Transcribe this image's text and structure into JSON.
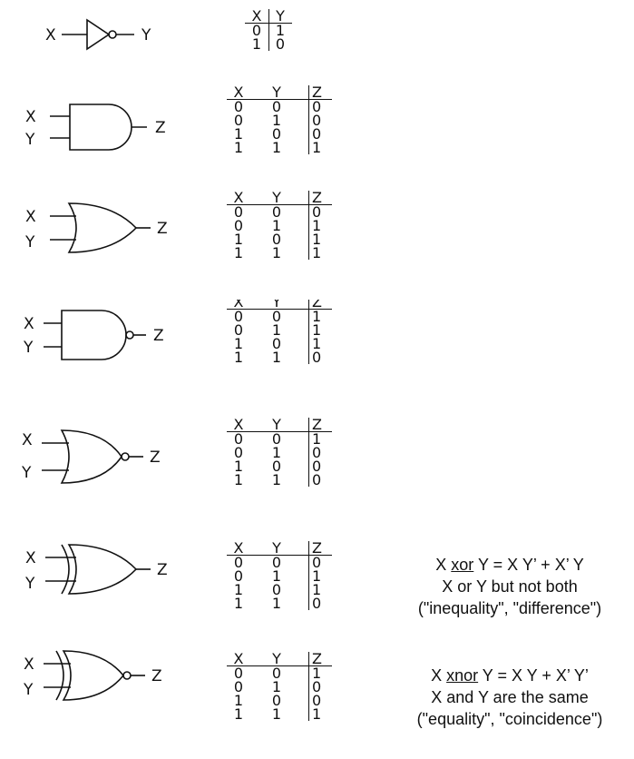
{
  "tables": [
    {
      "id": "not",
      "headers": [
        "X",
        "Y"
      ],
      "rows": [
        [
          "0",
          "1"
        ],
        [
          "1",
          "0"
        ]
      ]
    },
    {
      "id": "and",
      "headers": [
        "X",
        "Y",
        "Z"
      ],
      "rows": [
        [
          "0",
          "0",
          "0"
        ],
        [
          "0",
          "1",
          "0"
        ],
        [
          "1",
          "0",
          "0"
        ],
        [
          "1",
          "1",
          "1"
        ]
      ]
    },
    {
      "id": "or",
      "headers": [
        "X",
        "Y",
        "Z"
      ],
      "rows": [
        [
          "0",
          "0",
          "0"
        ],
        [
          "0",
          "1",
          "1"
        ],
        [
          "1",
          "0",
          "1"
        ],
        [
          "1",
          "1",
          "1"
        ]
      ]
    },
    {
      "id": "nand",
      "headers": [
        "X",
        "Y",
        "Z"
      ],
      "rows": [
        [
          "0",
          "0",
          "1"
        ],
        [
          "0",
          "1",
          "1"
        ],
        [
          "1",
          "0",
          "1"
        ],
        [
          "1",
          "1",
          "0"
        ]
      ]
    },
    {
      "id": "nor",
      "headers": [
        "X",
        "Y",
        "Z"
      ],
      "rows": [
        [
          "0",
          "0",
          "1"
        ],
        [
          "0",
          "1",
          "0"
        ],
        [
          "1",
          "0",
          "0"
        ],
        [
          "1",
          "1",
          "0"
        ]
      ]
    },
    {
      "id": "xor",
      "headers": [
        "X",
        "Y",
        "Z"
      ],
      "rows": [
        [
          "0",
          "0",
          "0"
        ],
        [
          "0",
          "1",
          "1"
        ],
        [
          "1",
          "0",
          "1"
        ],
        [
          "1",
          "1",
          "0"
        ]
      ]
    },
    {
      "id": "xnor",
      "headers": [
        "X",
        "Y",
        "Z"
      ],
      "rows": [
        [
          "0",
          "0",
          "1"
        ],
        [
          "0",
          "1",
          "0"
        ],
        [
          "1",
          "0",
          "0"
        ],
        [
          "1",
          "1",
          "1"
        ]
      ]
    }
  ],
  "labels": {
    "x": "X",
    "y": "Y",
    "z": "Z"
  },
  "notes": {
    "xor": {
      "pre": "X ",
      "op": "xor",
      "post": " Y = X Y’ + X’ Y",
      "line2": "X or Y but not both",
      "line3": "(\"inequality\", \"difference\")"
    },
    "xnor": {
      "pre": "X ",
      "op": "xnor",
      "post": " Y = X Y + X’ Y’",
      "line2": "X and Y are the same",
      "line3": "(\"equality\", \"coincidence\")"
    }
  }
}
